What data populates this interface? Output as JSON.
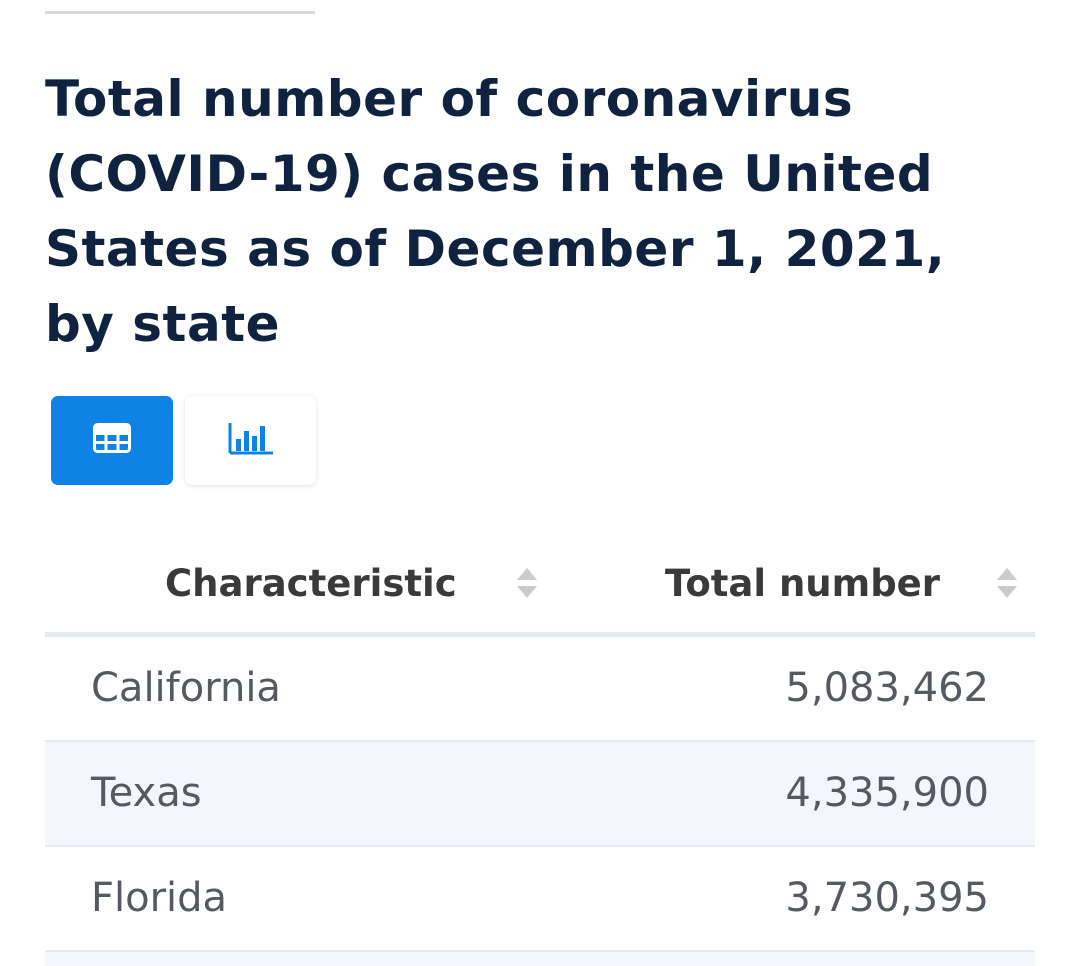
{
  "title": "Total number of coronavirus (COVID-19) cases in the United States as of December 1, 2021, by state",
  "view_toggle": {
    "active": "table",
    "options": [
      {
        "name": "table-view",
        "icon": "table-icon"
      },
      {
        "name": "chart-view",
        "icon": "bar-chart-icon"
      }
    ],
    "active_color": "#0f82e6"
  },
  "table": {
    "columns": [
      "Characteristic",
      "Total number"
    ],
    "rows": [
      {
        "state": "California",
        "total": "5,083,462"
      },
      {
        "state": "Texas",
        "total": "4,335,900"
      },
      {
        "state": "Florida",
        "total": "3,730,395"
      }
    ]
  }
}
